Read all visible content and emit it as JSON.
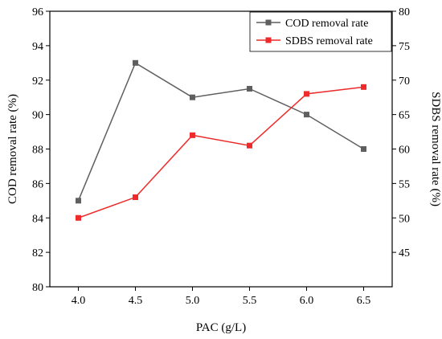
{
  "chart_data": {
    "type": "line",
    "xlabel": "PAC (g/L)",
    "ylabel_left": "COD removal rate (%)",
    "ylabel_right": "SDBS removal rate (%)",
    "x": [
      4.0,
      4.5,
      5.0,
      5.5,
      6.0,
      6.5
    ],
    "xlim": [
      3.75,
      6.75
    ],
    "xticks": [
      "4.0",
      "4.5",
      "5.0",
      "5.5",
      "6.0",
      "6.5"
    ],
    "ylim_left": [
      80,
      96
    ],
    "yticks_left": [
      "80",
      "82",
      "84",
      "86",
      "88",
      "90",
      "92",
      "94",
      "96"
    ],
    "ylim_right": [
      40,
      80
    ],
    "yticks_right": [
      "45",
      "50",
      "55",
      "60",
      "65",
      "70",
      "75",
      "80"
    ],
    "legend_position": "top-right",
    "grid": false,
    "series": [
      {
        "name": "COD removal rate",
        "axis": "left",
        "color": "#5f5f5f",
        "marker": "square",
        "values": [
          85.0,
          93.0,
          91.0,
          91.5,
          90.0,
          88.0
        ]
      },
      {
        "name": "SDBS removal rate",
        "axis": "right",
        "color": "#ee2a2a",
        "marker": "square",
        "values": [
          50.0,
          53.0,
          62.0,
          60.5,
          68.0,
          69.0
        ]
      }
    ]
  }
}
